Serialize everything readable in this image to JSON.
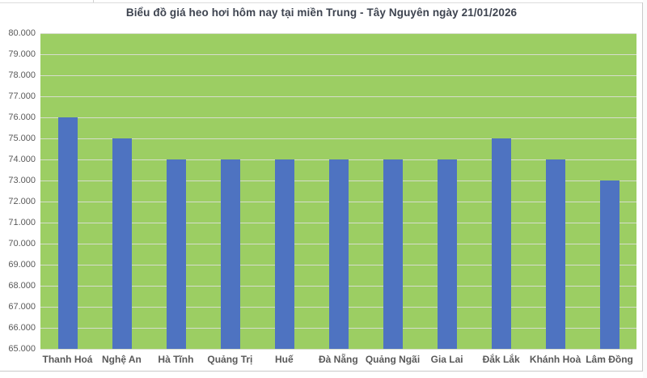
{
  "chart_data": {
    "type": "bar",
    "title": "Biểu đồ giá heo hơi hôm nay tại miền Trung - Tây Nguyên ngày 21/01/2026",
    "categories": [
      "Thanh Hoá",
      "Nghệ An",
      "Hà Tĩnh",
      "Quảng Trị",
      "Huế",
      "Đà Nẵng",
      "Quảng Ngãi",
      "Gia Lai",
      "Đắk Lắk",
      "Khánh Hoà",
      "Lâm Đồng"
    ],
    "values": [
      76000,
      75000,
      74000,
      74000,
      74000,
      74000,
      74000,
      74000,
      75000,
      74000,
      73000
    ],
    "y_tick_labels": [
      "80.000",
      "79.000",
      "78.000",
      "77.000",
      "76.000",
      "75.000",
      "74.000",
      "73.000",
      "72.000",
      "71.000",
      "70.000",
      "69.000",
      "68.000",
      "67.000",
      "66.000",
      "65.000"
    ],
    "ylim": [
      65000,
      80000
    ],
    "y_step": 1000,
    "xlabel": "",
    "ylabel": "",
    "grid": "horizontal",
    "legend_position": "none",
    "colors": {
      "bar": "#4E73C1",
      "plot_background": "#9CCE63",
      "gridline": "#D6DDCC",
      "title_text": "#3E4450",
      "axis_text": "#595959",
      "frame_border": "#C9C9C9"
    }
  }
}
